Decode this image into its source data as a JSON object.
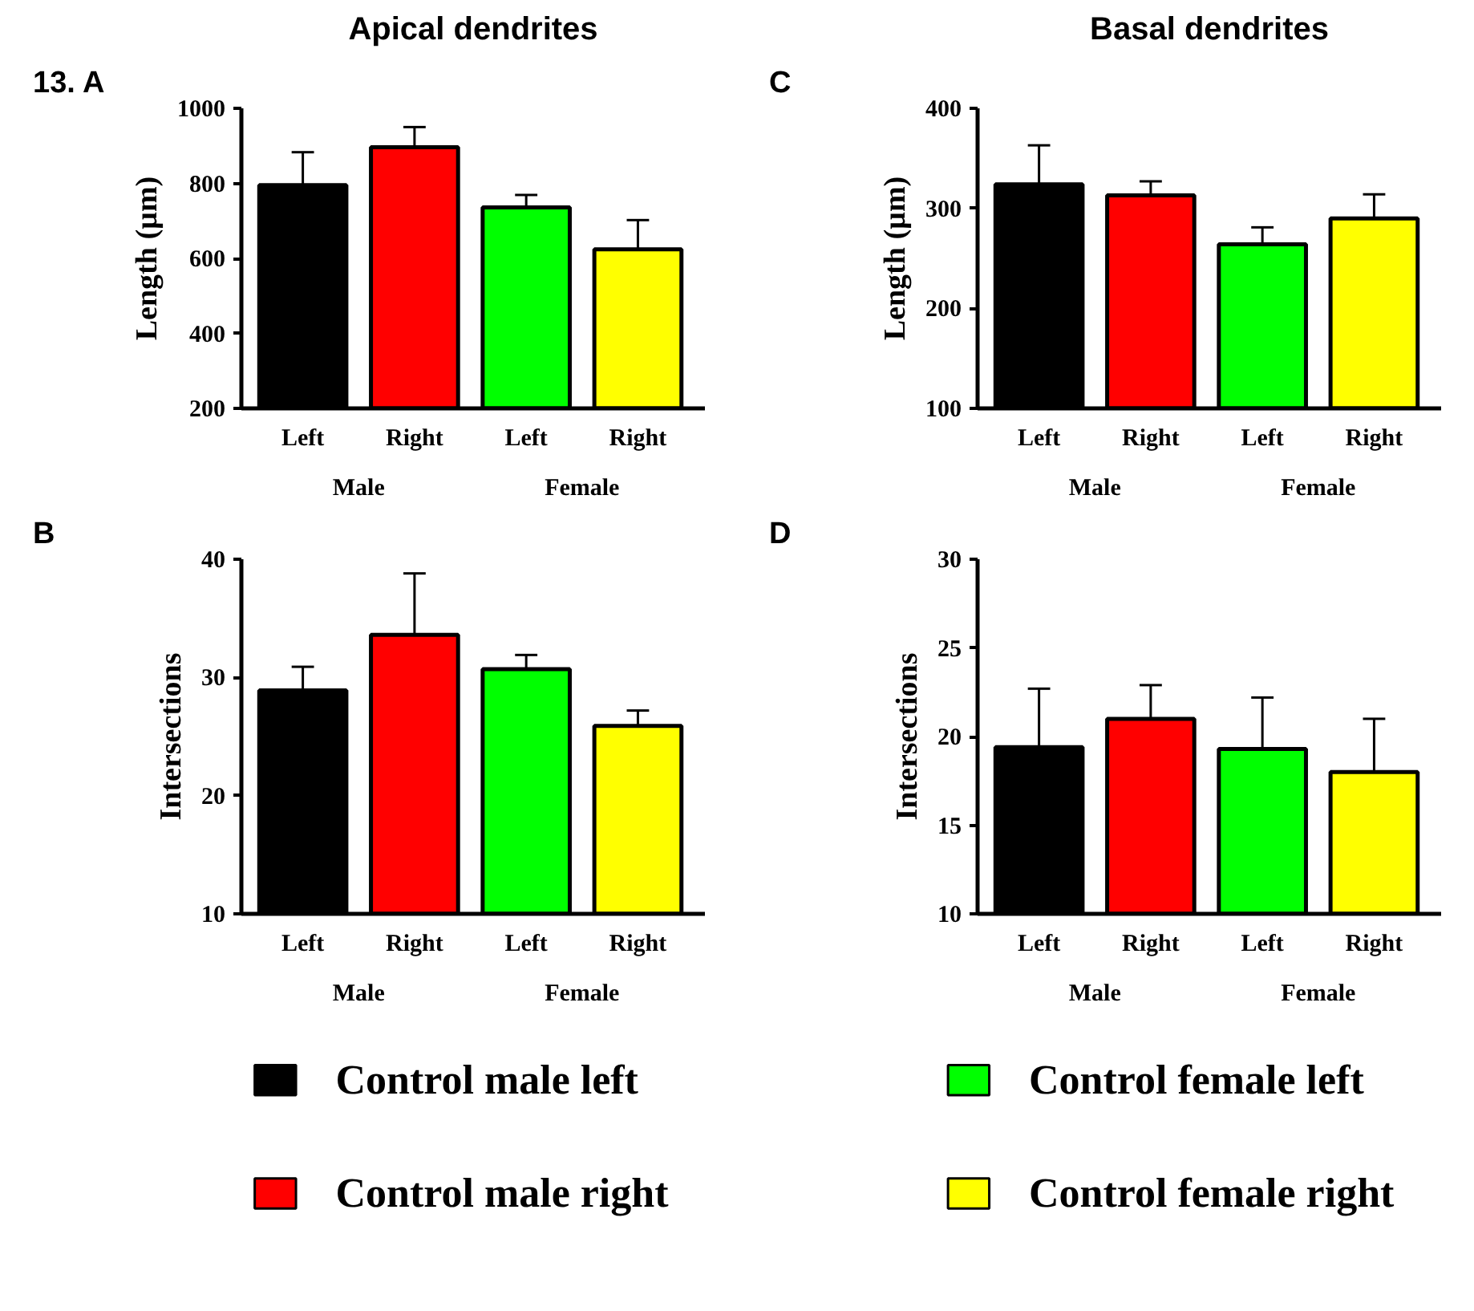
{
  "chart_data": [
    {
      "type": "bar",
      "title": "Apical dendrites",
      "subtitle": "13. A",
      "ylabel": "Length (µm)",
      "categories": [
        "Left",
        "Right",
        "Left",
        "Right"
      ],
      "annotations": [
        "Male",
        "Female"
      ],
      "ylim": [
        200,
        1000
      ],
      "yticks": [
        200,
        400,
        600,
        800,
        1000
      ],
      "legend": "bottom",
      "series": [
        {
          "name": "Control male left",
          "color": "#000000",
          "values": [
            795,
            null,
            null,
            null
          ],
          "errors": [
            88,
            null,
            null,
            null
          ]
        },
        {
          "name": "Control male right",
          "color": "#ff0000",
          "values": [
            null,
            896,
            null,
            null
          ],
          "errors": [
            null,
            54,
            null,
            null
          ]
        },
        {
          "name": "Control female left",
          "color": "#00ff00",
          "values": [
            null,
            null,
            736,
            null
          ],
          "errors": [
            null,
            null,
            33,
            null
          ]
        },
        {
          "name": "Control female right",
          "color": "#ffff00",
          "values": [
            null,
            null,
            null,
            624
          ],
          "errors": [
            null,
            null,
            null,
            78
          ]
        }
      ]
    },
    {
      "type": "bar",
      "title": "Basal dendrites",
      "subtitle": "C",
      "ylabel": "Length (µm)",
      "categories": [
        "Left",
        "Right",
        "Left",
        "Right"
      ],
      "annotations": [
        "Male",
        "Female"
      ],
      "ylim": [
        100,
        400
      ],
      "yticks": [
        100,
        200,
        300,
        400
      ],
      "series": [
        {
          "color": "#000000",
          "values": [
            324,
            null,
            null,
            null
          ],
          "errors": [
            39,
            null,
            null,
            null
          ]
        },
        {
          "color": "#ff0000",
          "values": [
            null,
            313,
            null,
            null
          ],
          "errors": [
            null,
            14,
            null,
            null
          ]
        },
        {
          "color": "#00ff00",
          "values": [
            null,
            null,
            264,
            null
          ],
          "errors": [
            null,
            null,
            17,
            null
          ]
        },
        {
          "color": "#ffff00",
          "values": [
            null,
            null,
            null,
            290
          ],
          "errors": [
            null,
            null,
            null,
            24
          ]
        }
      ]
    },
    {
      "type": "bar",
      "subtitle": "B",
      "ylabel": "Intersections",
      "categories": [
        "Left",
        "Right",
        "Left",
        "Right"
      ],
      "annotations": [
        "Male",
        "Female"
      ],
      "ylim": [
        10,
        40
      ],
      "yticks": [
        10,
        20,
        30,
        40
      ],
      "series": [
        {
          "color": "#000000",
          "values": [
            28.9,
            null,
            null,
            null
          ],
          "errors": [
            2.0,
            null,
            null,
            null
          ]
        },
        {
          "color": "#ff0000",
          "values": [
            null,
            33.6,
            null,
            null
          ],
          "errors": [
            null,
            5.2,
            null,
            null
          ]
        },
        {
          "color": "#00ff00",
          "values": [
            null,
            null,
            30.7,
            null
          ],
          "errors": [
            null,
            null,
            1.2,
            null
          ]
        },
        {
          "color": "#ffff00",
          "values": [
            null,
            null,
            null,
            25.9
          ],
          "errors": [
            null,
            null,
            null,
            1.3
          ]
        }
      ]
    },
    {
      "type": "bar",
      "subtitle": "D",
      "ylabel": "Intersections",
      "categories": [
        "Left",
        "Right",
        "Left",
        "Right"
      ],
      "annotations": [
        "Male",
        "Female"
      ],
      "ylim": [
        10,
        30
      ],
      "yticks": [
        10,
        15,
        20,
        25,
        30
      ],
      "series": [
        {
          "color": "#000000",
          "values": [
            19.4,
            null,
            null,
            null
          ],
          "errors": [
            3.3,
            null,
            null,
            null
          ]
        },
        {
          "color": "#ff0000",
          "values": [
            null,
            21.0,
            null,
            null
          ],
          "errors": [
            null,
            1.9,
            null,
            null
          ]
        },
        {
          "color": "#00ff00",
          "values": [
            null,
            null,
            19.3,
            null
          ],
          "errors": [
            null,
            null,
            2.9,
            null
          ]
        },
        {
          "color": "#ffff00",
          "values": [
            null,
            null,
            null,
            18.0
          ],
          "errors": [
            null,
            null,
            null,
            3.0
          ]
        }
      ]
    }
  ]
}
